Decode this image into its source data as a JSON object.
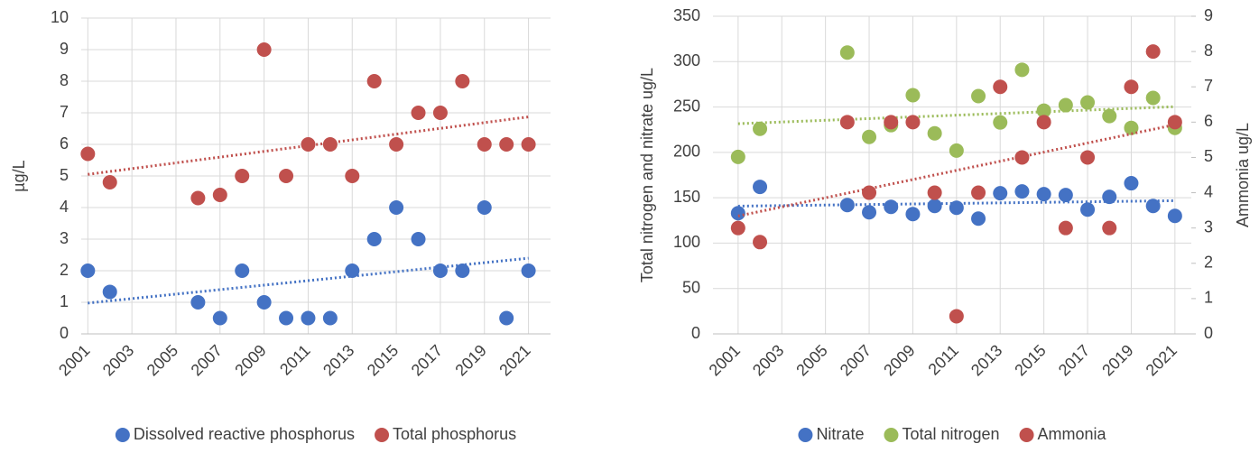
{
  "chart_data": [
    {
      "type": "scatter",
      "y_label": "µg/L",
      "x": [
        2001,
        2002,
        2006,
        2007,
        2008,
        2009,
        2010,
        2011,
        2012,
        2013,
        2014,
        2015,
        2016,
        2017,
        2018,
        2019,
        2020,
        2021
      ],
      "series": [
        {
          "name": "Dissolved reactive phosphorus",
          "color": "#4472c4",
          "values": [
            2,
            1.33,
            1,
            0.5,
            2,
            1,
            0.5,
            0.5,
            0.5,
            2,
            3,
            4,
            3,
            2,
            2,
            4,
            0.5,
            2
          ]
        },
        {
          "name": "Total phosphorus",
          "color": "#c0504d",
          "values": [
            5.7,
            4.8,
            4.3,
            4.4,
            5,
            9,
            5,
            6,
            6,
            5,
            8,
            6,
            7,
            7,
            8,
            6,
            6,
            6
          ]
        }
      ],
      "xlim": [
        2000.7,
        2022
      ],
      "xticks": [
        2001,
        2003,
        2005,
        2007,
        2009,
        2011,
        2013,
        2015,
        2017,
        2019,
        2021
      ],
      "ylim": [
        0,
        10
      ],
      "yticks": [
        0,
        1,
        2,
        3,
        4,
        5,
        6,
        7,
        8,
        9,
        10
      ],
      "grid": true,
      "trendline": "linear",
      "legend": "bottom"
    },
    {
      "type": "scatter",
      "y_label": "Total nitrogen and nitrate ug/L",
      "y2_label": "Ammonia ug/L",
      "x": [
        2001,
        2002,
        2006,
        2007,
        2008,
        2009,
        2010,
        2011,
        2012,
        2013,
        2014,
        2015,
        2016,
        2017,
        2018,
        2019,
        2020,
        2021
      ],
      "series": [
        {
          "name": "Nitrate",
          "color": "#4472c4",
          "values": [
            133,
            162,
            142,
            134,
            140,
            132,
            141,
            139,
            127,
            155,
            157,
            154,
            153,
            137,
            151,
            166,
            141,
            130
          ]
        },
        {
          "name": "Total nitrogen",
          "color": "#9bbb59",
          "values": [
            195,
            226,
            310,
            217,
            230,
            263,
            221,
            202,
            262,
            233,
            291,
            246,
            252,
            255,
            240,
            227,
            260,
            227
          ]
        },
        {
          "name": "Ammonia",
          "color": "#c0504d",
          "axis": "y2",
          "values": [
            3,
            2.6,
            6,
            4,
            6,
            6,
            4,
            0.5,
            4,
            7,
            5,
            6,
            3,
            5,
            3,
            7,
            8,
            6
          ]
        }
      ],
      "xlim": [
        1999.85,
        2021.75
      ],
      "xticks": [
        2001,
        2003,
        2005,
        2007,
        2009,
        2011,
        2013,
        2015,
        2017,
        2019,
        2021
      ],
      "ylim": [
        0,
        350
      ],
      "yticks": [
        0,
        50,
        100,
        150,
        200,
        250,
        300,
        350
      ],
      "y2lim": [
        0,
        9
      ],
      "y2ticks": [
        0,
        1,
        2,
        3,
        4,
        5,
        6,
        7,
        8,
        9
      ],
      "grid": true,
      "trendline": "linear",
      "legend": "bottom"
    }
  ]
}
